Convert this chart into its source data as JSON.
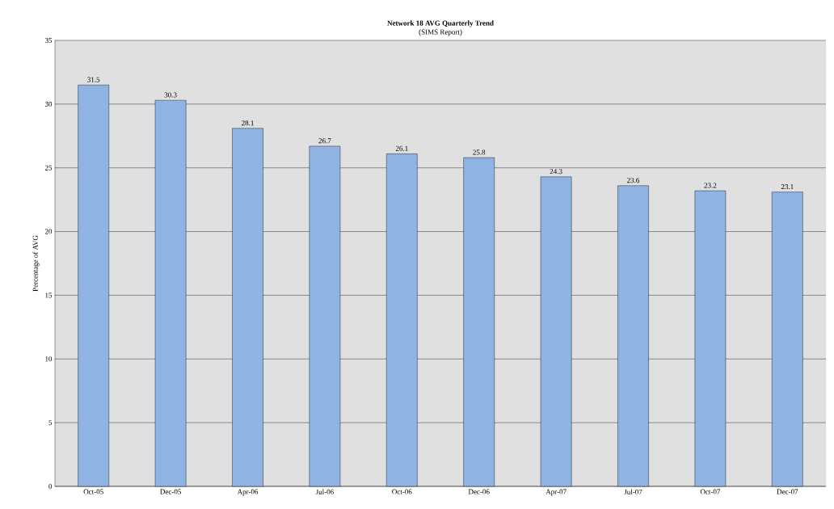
{
  "chart_data": {
    "type": "bar",
    "title": "Network 18 AVG Quarterly Trend",
    "subtitle": "(SIMS Report)",
    "ylabel": "Percentage of AVG",
    "categories": [
      "Oct-05",
      "Dec-05",
      "Apr-06",
      "Jul-06",
      "Oct-06",
      "Dec-06",
      "Apr-07",
      "Jul-07",
      "Oct-07",
      "Dec-07"
    ],
    "values": [
      31.5,
      30.3,
      28.1,
      26.7,
      26.1,
      25.8,
      24.3,
      23.6,
      23.2,
      23.1
    ],
    "color": "#8fb3e2",
    "ylim": [
      0,
      35
    ],
    "yticks": [
      0,
      5,
      10,
      15,
      20,
      25,
      30,
      35
    ],
    "grid": "y",
    "data_labels": true
  }
}
